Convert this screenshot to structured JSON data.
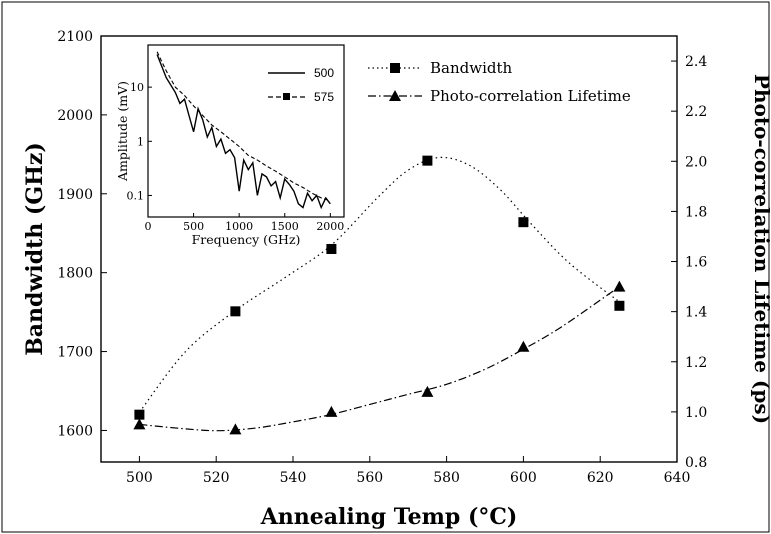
{
  "chart_data": {
    "type": "line",
    "title": "",
    "xlabel": "Annealing Temp (°C)",
    "ylabel_left": "Bandwidth (GHz)",
    "ylabel_right": "Photo-correlation Lifetime (ps)",
    "xlim": [
      490,
      640
    ],
    "xticks": [
      "500",
      "520",
      "540",
      "560",
      "580",
      "600",
      "620",
      "640"
    ],
    "ylim_left": [
      1560,
      2100
    ],
    "yticks_left": [
      "1600",
      "1700",
      "1800",
      "1900",
      "2000",
      "2100"
    ],
    "ylim_right": [
      0.8,
      2.5
    ],
    "yticks_right": [
      "0.8",
      "1.0",
      "1.2",
      "1.4",
      "1.6",
      "1.8",
      "2.0",
      "2.2",
      "2.4"
    ],
    "legend_position": "top-right",
    "series": [
      {
        "name": "Bandwidth",
        "axis": "left",
        "marker": "square",
        "line_style": "dotted",
        "x": [
          500,
          525,
          550,
          575,
          600,
          625
        ],
        "y": [
          1620,
          1751,
          1830,
          1942,
          1864,
          1758
        ],
        "fit": {
          "x": [
            500,
            512,
            525,
            538,
            550,
            562,
            570,
            578,
            586,
            594,
            602,
            612,
            625
          ],
          "y": [
            1623,
            1700,
            1752,
            1794,
            1835,
            1895,
            1930,
            1946,
            1936,
            1905,
            1862,
            1812,
            1763
          ]
        }
      },
      {
        "name": "Photo-correlation Lifetime",
        "axis": "right",
        "marker": "triangle",
        "line_style": "dash-dot",
        "x": [
          500,
          525,
          550,
          575,
          600,
          625
        ],
        "y": [
          0.95,
          0.93,
          1.0,
          1.08,
          1.26,
          1.5
        ],
        "fit": {
          "x": [
            500,
            510,
            520,
            530,
            540,
            550,
            560,
            570,
            580,
            590,
            600,
            610,
            625
          ],
          "y": [
            0.95,
            0.935,
            0.925,
            0.935,
            0.96,
            0.99,
            1.03,
            1.07,
            1.11,
            1.17,
            1.25,
            1.34,
            1.5
          ]
        }
      }
    ],
    "inset": {
      "type": "line",
      "xlabel": "Frequency (GHz)",
      "ylabel": "Amplitude (mV)",
      "yscale": "log",
      "xlim": [
        0,
        2150
      ],
      "xticks": [
        "0",
        "500",
        "1000",
        "1500",
        "2000"
      ],
      "ylim": [
        0.04,
        60
      ],
      "yticks": [
        "0.1",
        "1",
        "10"
      ],
      "series": [
        {
          "name": "500",
          "line_style": "solid",
          "x": [
            100,
            200,
            300,
            350,
            400,
            450,
            500,
            550,
            600,
            650,
            700,
            750,
            800,
            850,
            900,
            950,
            1000,
            1050,
            1100,
            1150,
            1200,
            1250,
            1300,
            1350,
            1400,
            1450,
            1500,
            1550,
            1600,
            1650,
            1700,
            1750,
            1800,
            1850,
            1900,
            1950,
            2000
          ],
          "y": [
            40,
            15,
            8,
            5,
            6,
            3,
            1.5,
            4,
            2.5,
            1.2,
            1.8,
            0.8,
            1.1,
            0.6,
            0.7,
            0.5,
            0.12,
            0.45,
            0.3,
            0.4,
            0.1,
            0.25,
            0.22,
            0.15,
            0.18,
            0.09,
            0.2,
            0.16,
            0.12,
            0.07,
            0.06,
            0.11,
            0.08,
            0.1,
            0.06,
            0.09,
            0.07
          ]
        },
        {
          "name": "575",
          "line_style": "dashed",
          "x": [
            100,
            200,
            300,
            400,
            500,
            600,
            700,
            800,
            900,
            1000,
            1100,
            1200,
            1300,
            1400,
            1500,
            1600,
            1700,
            1800,
            1900,
            2000
          ],
          "y": [
            45,
            20,
            10,
            7,
            4.5,
            3,
            2,
            1.5,
            1.1,
            0.8,
            0.55,
            0.45,
            0.35,
            0.28,
            0.22,
            0.17,
            0.14,
            0.11,
            0.09,
            0.08
          ]
        }
      ]
    }
  }
}
